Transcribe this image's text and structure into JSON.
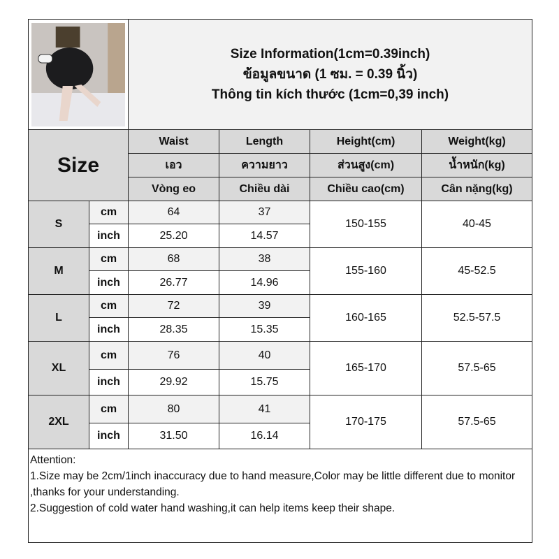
{
  "title": {
    "line1": "Size Information(1cm=0.39inch)",
    "line2": "ข้อมูลขนาด (1 ซม. = 0.39 นิ้ว)",
    "line3": "Thông tin kích thước (1cm=0,39 inch)"
  },
  "size_label": "Size",
  "columns": [
    {
      "en": "Waist",
      "th": "เอว",
      "vi": "Vòng eo"
    },
    {
      "en": "Length",
      "th": "ความยาว",
      "vi": "Chiều dài"
    },
    {
      "en": "Height(cm)",
      "th": "ส่วนสูง(cm)",
      "vi": "Chiều cao(cm)"
    },
    {
      "en": "Weight(kg)",
      "th": "น้ำหนัก(kg)",
      "vi": "Cân nặng(kg)"
    }
  ],
  "units": {
    "cm": "cm",
    "inch": "inch"
  },
  "rows": [
    {
      "size": "S",
      "waist_cm": "64",
      "length_cm": "37",
      "waist_in": "25.20",
      "length_in": "14.57",
      "height": "150-155",
      "weight": "40-45"
    },
    {
      "size": "M",
      "waist_cm": "68",
      "length_cm": "38",
      "waist_in": "26.77",
      "length_in": "14.96",
      "height": "155-160",
      "weight": "45-52.5"
    },
    {
      "size": "L",
      "waist_cm": "72",
      "length_cm": "39",
      "waist_in": "28.35",
      "length_in": "15.35",
      "height": "160-165",
      "weight": "52.5-57.5"
    },
    {
      "size": "XL",
      "waist_cm": "76",
      "length_cm": "40",
      "waist_in": "29.92",
      "length_in": "15.75",
      "height": "165-170",
      "weight": "57.5-65"
    },
    {
      "size": "2XL",
      "waist_cm": "80",
      "length_cm": "41",
      "waist_in": "31.50",
      "length_in": "16.14",
      "height": "170-175",
      "weight": "57.5-65"
    }
  ],
  "notes": {
    "heading": "Attention:",
    "line1": "1.Size may be 2cm/1inch inaccuracy due to hand measure,Color may be little different due to monitor ,thanks for your understanding.",
    "line2": "2.Suggestion of cold water hand washing,it can help items keep their shape."
  }
}
